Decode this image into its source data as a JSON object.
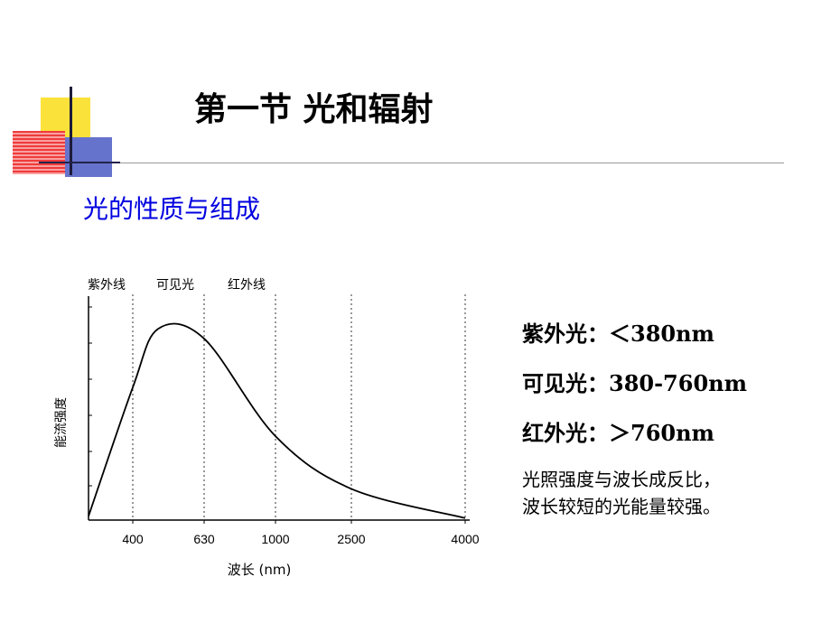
{
  "slide": {
    "title": "第一节 光和辐射",
    "subtitle": "光的性质与组成"
  },
  "info": {
    "uv": "紫外光：＜380nm",
    "visible": "可见光：380-760nm",
    "ir": "红外光：＞760nm",
    "note_line1": "光照强度与波长成反比，",
    "note_line2": "波长较短的光能量较强。"
  },
  "chart_data": {
    "type": "line",
    "region_labels": [
      "紫外线",
      "可见光",
      "红外线"
    ],
    "ylabel": "能流强度",
    "xlabel": "波长 (nm)",
    "x_ticks": [
      "400",
      "630",
      "1000",
      "2500",
      "4000"
    ],
    "x_is_nonlinear": true,
    "series": [
      {
        "values": [
          {
            "x": "0",
            "y": 0.02
          },
          {
            "x": "400",
            "y": 0.68
          },
          {
            "x": "500",
            "y": 0.98
          },
          {
            "x": "630",
            "y": 0.93
          },
          {
            "x": "1000",
            "y": 0.43
          },
          {
            "x": "2500",
            "y": 0.16
          },
          {
            "x": "4000",
            "y": 0.01
          }
        ]
      }
    ],
    "ylim": [
      0,
      1
    ],
    "grid": "dashed vertical lines at each x tick",
    "colors": {
      "line": "#000000",
      "subtitle": "#0000e0"
    }
  }
}
